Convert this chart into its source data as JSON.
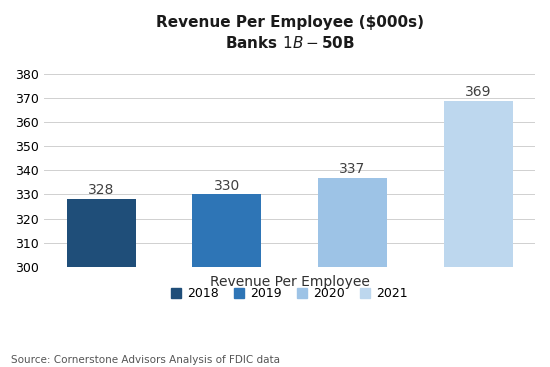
{
  "title_line1": "Revenue Per Employee ($000s)",
  "title_line2": "Banks $1B - $50B",
  "years": [
    "2018",
    "2019",
    "2020",
    "2021"
  ],
  "values": [
    328,
    330,
    337,
    369
  ],
  "bar_colors": [
    "#1f4e79",
    "#2e75b6",
    "#9dc3e6",
    "#bdd7ee"
  ],
  "bar_bottom": 300,
  "ylim": [
    300,
    385
  ],
  "yticks": [
    300,
    310,
    320,
    330,
    340,
    350,
    360,
    370,
    380
  ],
  "xlabel": "Revenue Per Employee",
  "legend_labels": [
    "2018",
    "2019",
    "2020",
    "2021"
  ],
  "legend_colors": [
    "#1f4e79",
    "#2e75b6",
    "#9dc3e6",
    "#bdd7ee"
  ],
  "source_text": "Source: Cornerstone Advisors Analysis of FDIC data",
  "background_color": "#ffffff",
  "label_fontsize": 10,
  "title_fontsize": 11,
  "xlabel_fontsize": 10,
  "tick_fontsize": 9,
  "source_fontsize": 7.5,
  "legend_fontsize": 9
}
